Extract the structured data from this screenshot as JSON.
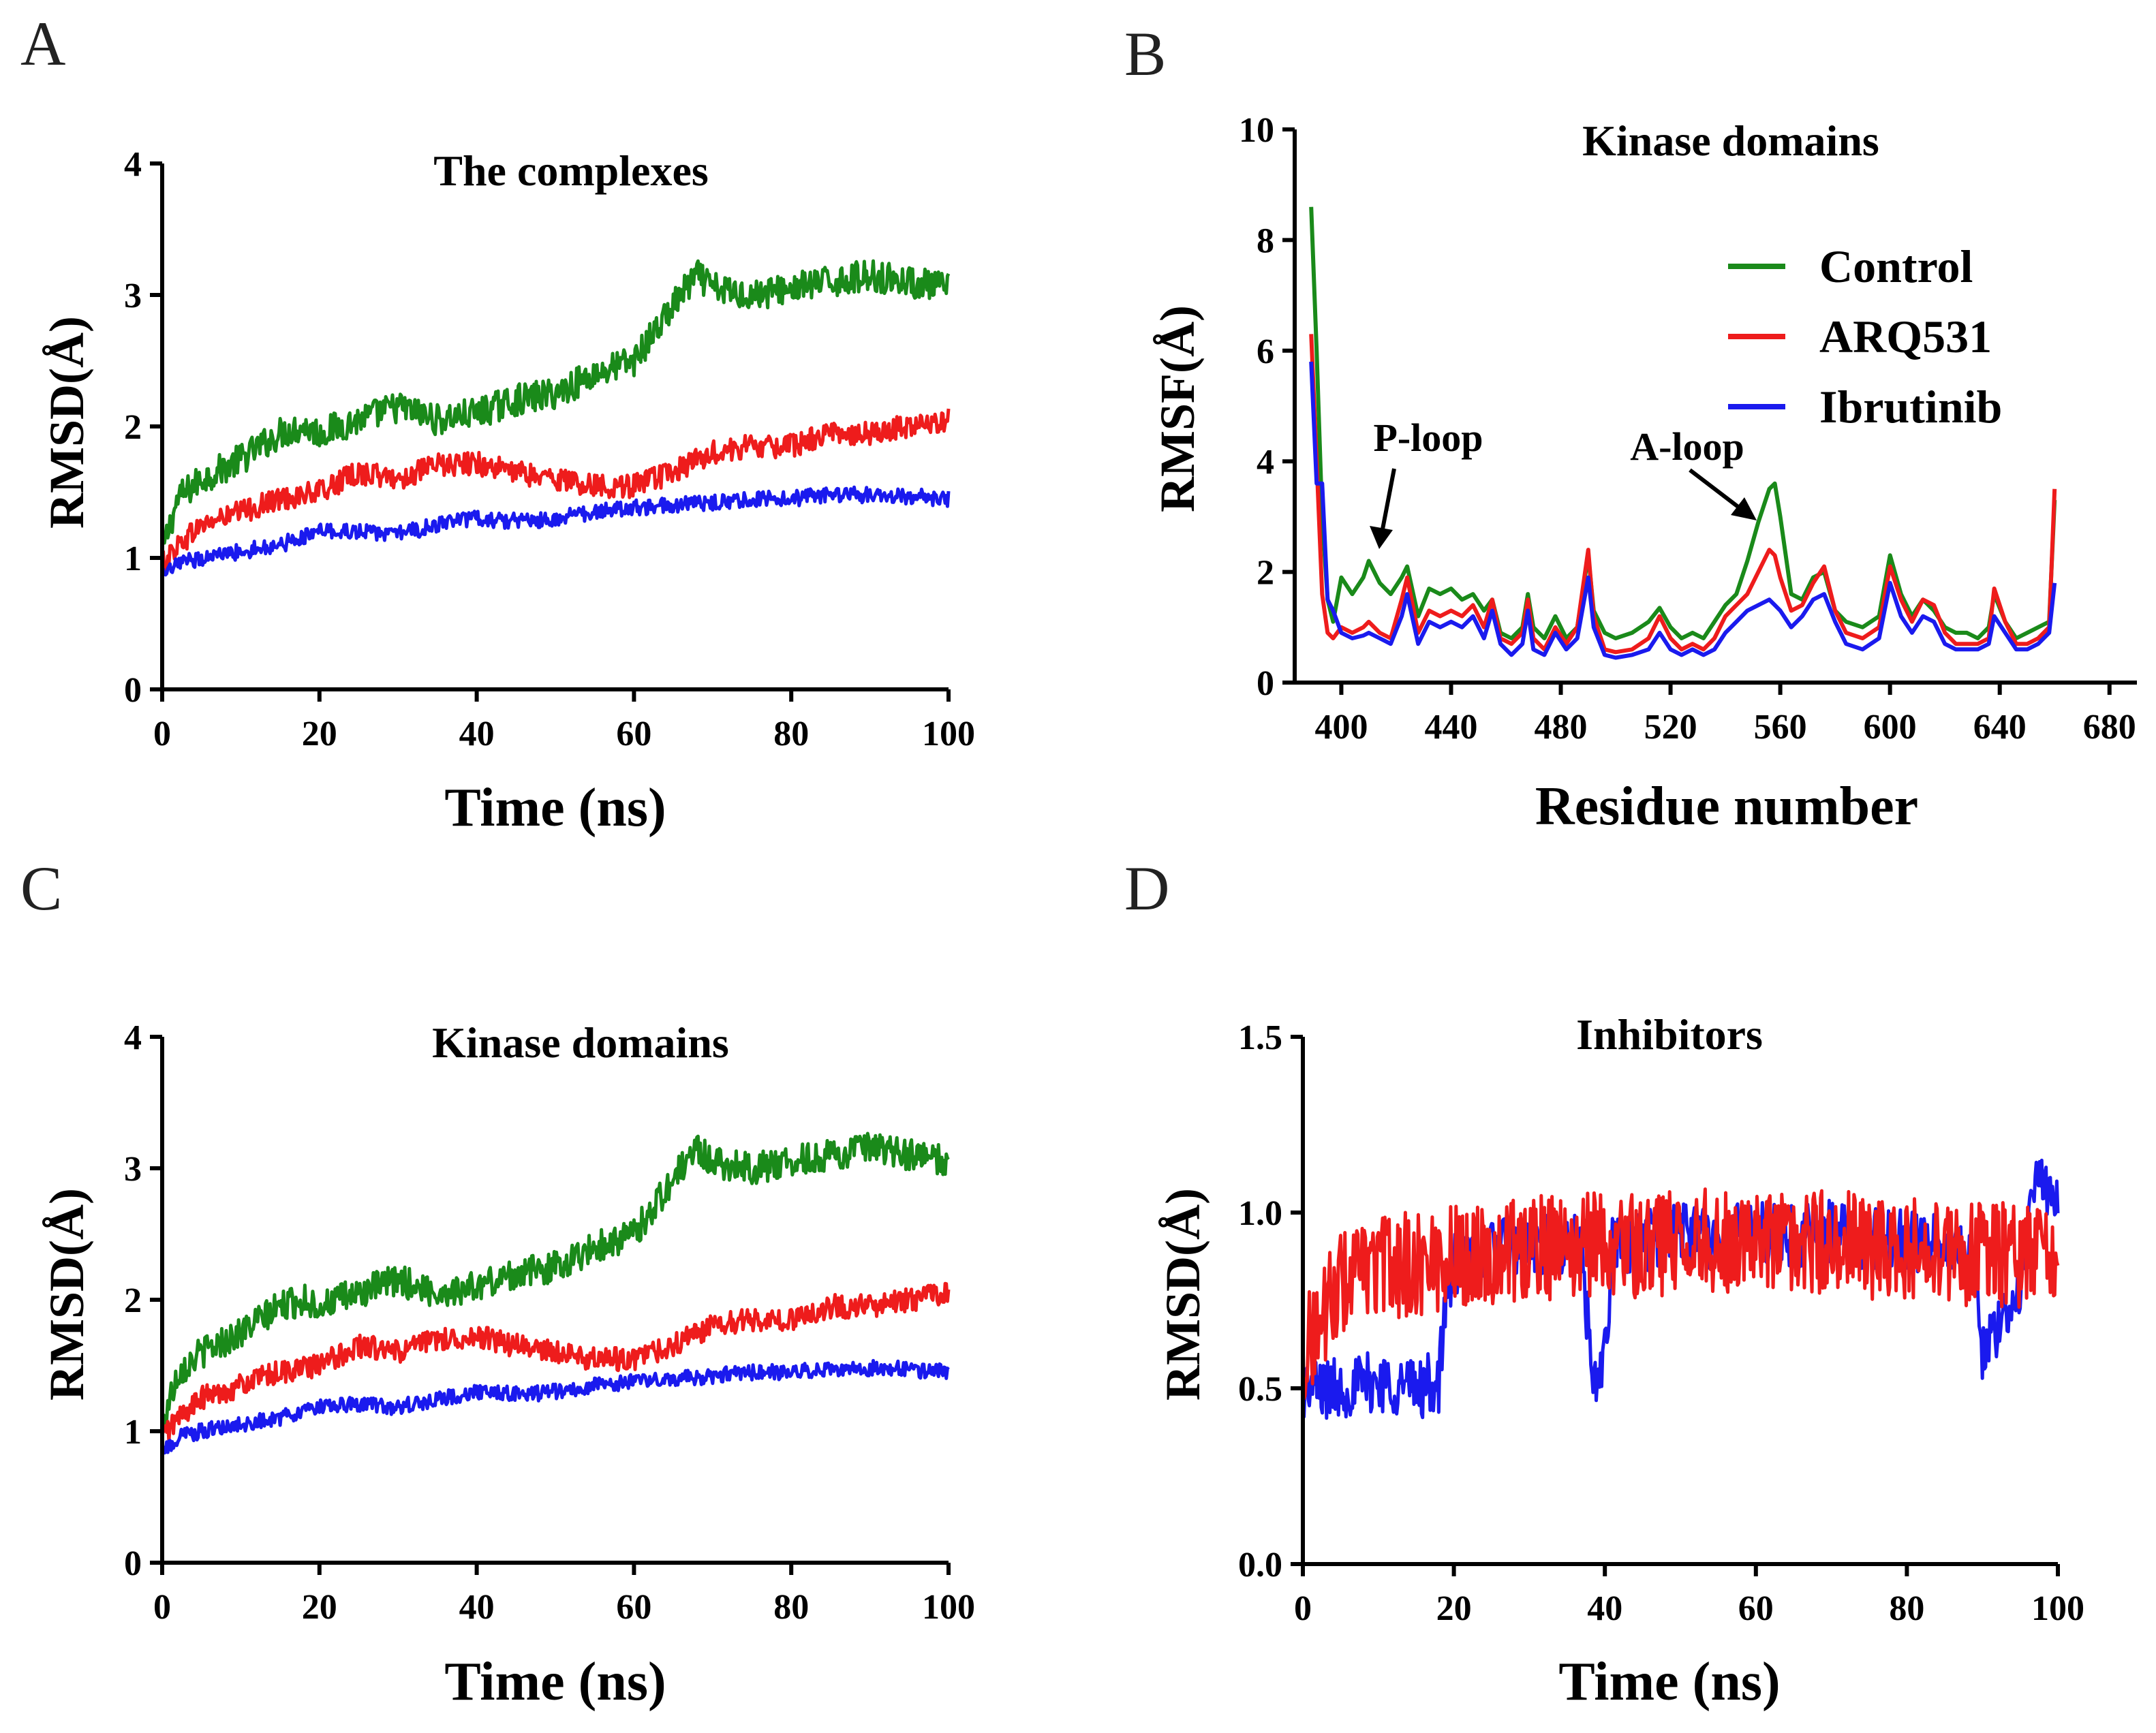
{
  "chart_data": [
    {
      "id": "A",
      "type": "line",
      "panel_label": "A",
      "title": "The complexes",
      "xlabel": "Time (ns)",
      "ylabel": "RMSD(Å)",
      "xlim": [
        0,
        100
      ],
      "ylim": [
        0,
        4
      ],
      "xticks": [
        0,
        20,
        40,
        60,
        80,
        100
      ],
      "yticks": [
        0,
        1,
        2,
        3,
        4
      ],
      "grid": false,
      "series": [
        {
          "color": "#1a8a1a",
          "x": [
            0,
            2,
            5,
            10,
            15,
            18,
            20,
            25,
            30,
            35,
            40,
            45,
            50,
            55,
            60,
            63,
            66,
            68,
            70,
            75,
            80,
            85,
            90,
            95,
            100
          ],
          "y": [
            1.05,
            1.45,
            1.6,
            1.75,
            1.95,
            2.0,
            1.95,
            2.05,
            2.15,
            2.05,
            2.1,
            2.2,
            2.25,
            2.4,
            2.5,
            2.75,
            3.0,
            3.15,
            3.05,
            3.0,
            3.05,
            3.1,
            3.15,
            3.1,
            3.05
          ]
        },
        {
          "color": "#ee1c1c",
          "x": [
            0,
            2,
            5,
            10,
            15,
            20,
            25,
            30,
            35,
            40,
            45,
            50,
            55,
            60,
            65,
            70,
            75,
            80,
            85,
            90,
            95,
            100
          ],
          "y": [
            0.95,
            1.1,
            1.25,
            1.35,
            1.45,
            1.5,
            1.65,
            1.6,
            1.7,
            1.72,
            1.65,
            1.6,
            1.55,
            1.55,
            1.65,
            1.8,
            1.85,
            1.85,
            1.95,
            1.95,
            2.0,
            2.05
          ]
        },
        {
          "color": "#1a1aee",
          "x": [
            0,
            2,
            5,
            10,
            15,
            20,
            25,
            30,
            35,
            40,
            45,
            50,
            55,
            60,
            65,
            70,
            75,
            80,
            85,
            90,
            95,
            100
          ],
          "y": [
            0.85,
            0.95,
            1.0,
            1.05,
            1.1,
            1.2,
            1.2,
            1.18,
            1.25,
            1.3,
            1.28,
            1.3,
            1.35,
            1.38,
            1.4,
            1.42,
            1.45,
            1.45,
            1.48,
            1.48,
            1.47,
            1.45
          ]
        }
      ],
      "noise": [
        0.12,
        0.09,
        0.06
      ]
    },
    {
      "id": "B",
      "type": "line",
      "panel_label": "B",
      "title": "Kinase domains",
      "xlabel": "Residue number",
      "ylabel": "RMSF(Å)",
      "xlim": [
        383,
        690
      ],
      "ylim": [
        0,
        10
      ],
      "xticks": [
        400,
        440,
        480,
        520,
        560,
        600,
        640,
        680
      ],
      "yticks": [
        0,
        2,
        4,
        6,
        8,
        10
      ],
      "grid": false,
      "legend": {
        "position": "top-right",
        "entries": [
          "Control",
          "ARQ531",
          "Ibrutinib"
        ]
      },
      "annotations": [
        {
          "text": "P-loop",
          "x": 410,
          "y": 2.2
        },
        {
          "text": "A-loop",
          "x": 553,
          "y": 2.9
        }
      ],
      "series": [
        {
          "name": "Control",
          "color": "#1a8a1a",
          "x": [
            389,
            391,
            393,
            395,
            397,
            400,
            404,
            408,
            410,
            414,
            418,
            422,
            424,
            428,
            432,
            436,
            440,
            444,
            448,
            452,
            455,
            458,
            462,
            466,
            468,
            470,
            474,
            478,
            482,
            486,
            490,
            492,
            496,
            500,
            506,
            512,
            516,
            520,
            524,
            528,
            532,
            536,
            540,
            544,
            548,
            552,
            556,
            558,
            560,
            564,
            568,
            572,
            576,
            580,
            584,
            590,
            596,
            600,
            604,
            608,
            612,
            616,
            620,
            624,
            628,
            632,
            636,
            638,
            642,
            646,
            650,
            654,
            658,
            660
          ],
          "y": [
            8.6,
            6.0,
            3.0,
            1.5,
            1.1,
            1.9,
            1.6,
            1.9,
            2.2,
            1.8,
            1.6,
            1.9,
            2.1,
            1.2,
            1.7,
            1.6,
            1.7,
            1.5,
            1.6,
            1.3,
            1.5,
            0.9,
            0.8,
            1.0,
            1.6,
            1.0,
            0.8,
            1.2,
            0.8,
            1.0,
            2.3,
            1.3,
            0.9,
            0.8,
            0.9,
            1.1,
            1.35,
            1.0,
            0.8,
            0.9,
            0.8,
            1.1,
            1.4,
            1.6,
            2.2,
            2.9,
            3.5,
            3.6,
            3.0,
            1.6,
            1.5,
            1.9,
            2.0,
            1.3,
            1.1,
            1.0,
            1.2,
            2.3,
            1.6,
            1.2,
            1.5,
            1.3,
            1.0,
            0.9,
            0.9,
            0.8,
            1.0,
            1.6,
            1.1,
            0.8,
            0.9,
            1.0,
            1.1,
            3.3
          ]
        },
        {
          "name": "ARQ531",
          "color": "#ee1c1c",
          "x": [
            389,
            391,
            393,
            395,
            397,
            400,
            404,
            408,
            410,
            414,
            418,
            422,
            424,
            428,
            432,
            436,
            440,
            444,
            448,
            452,
            455,
            458,
            462,
            466,
            468,
            470,
            474,
            478,
            482,
            486,
            490,
            492,
            496,
            500,
            506,
            512,
            516,
            520,
            524,
            528,
            532,
            536,
            540,
            544,
            548,
            552,
            556,
            558,
            560,
            564,
            568,
            572,
            576,
            580,
            584,
            590,
            596,
            600,
            604,
            608,
            612,
            616,
            620,
            624,
            628,
            632,
            636,
            638,
            642,
            646,
            650,
            654,
            658,
            660
          ],
          "y": [
            6.3,
            4.0,
            1.6,
            0.9,
            0.8,
            1.0,
            0.9,
            1.0,
            1.1,
            0.9,
            0.8,
            1.5,
            1.9,
            0.9,
            1.3,
            1.2,
            1.3,
            1.2,
            1.4,
            1.0,
            1.5,
            0.8,
            0.7,
            0.9,
            1.5,
            0.8,
            0.6,
            1.0,
            0.7,
            1.0,
            2.4,
            1.2,
            0.6,
            0.55,
            0.6,
            0.8,
            1.2,
            0.8,
            0.6,
            0.7,
            0.6,
            0.8,
            1.2,
            1.4,
            1.6,
            2.0,
            2.4,
            2.3,
            1.9,
            1.3,
            1.4,
            1.8,
            2.1,
            1.3,
            0.9,
            0.8,
            1.0,
            2.1,
            1.5,
            1.1,
            1.5,
            1.4,
            0.9,
            0.7,
            0.7,
            0.7,
            0.8,
            1.7,
            1.1,
            0.7,
            0.7,
            0.8,
            1.0,
            3.5
          ]
        },
        {
          "name": "Ibrutinib",
          "color": "#1a1aee",
          "x": [
            389,
            391,
            393,
            395,
            397,
            400,
            404,
            408,
            410,
            414,
            418,
            422,
            424,
            428,
            432,
            436,
            440,
            444,
            448,
            452,
            455,
            458,
            462,
            466,
            468,
            470,
            474,
            478,
            482,
            486,
            490,
            492,
            496,
            500,
            506,
            512,
            516,
            520,
            524,
            528,
            532,
            536,
            540,
            544,
            548,
            552,
            556,
            558,
            560,
            564,
            568,
            572,
            576,
            580,
            584,
            590,
            596,
            600,
            604,
            608,
            612,
            616,
            620,
            624,
            628,
            632,
            636,
            638,
            642,
            646,
            650,
            654,
            658,
            660
          ],
          "y": [
            5.8,
            3.6,
            3.6,
            1.5,
            1.3,
            0.9,
            0.8,
            0.85,
            0.9,
            0.8,
            0.7,
            1.2,
            1.6,
            0.7,
            1.1,
            1.0,
            1.1,
            1.0,
            1.2,
            0.8,
            1.3,
            0.7,
            0.5,
            0.7,
            1.3,
            0.6,
            0.5,
            0.9,
            0.6,
            0.8,
            1.9,
            1.0,
            0.5,
            0.45,
            0.5,
            0.6,
            0.9,
            0.6,
            0.5,
            0.6,
            0.5,
            0.6,
            0.9,
            1.1,
            1.3,
            1.4,
            1.5,
            1.4,
            1.3,
            1.0,
            1.2,
            1.5,
            1.6,
            1.1,
            0.7,
            0.6,
            0.8,
            1.8,
            1.2,
            0.9,
            1.2,
            1.1,
            0.7,
            0.6,
            0.6,
            0.6,
            0.7,
            1.2,
            0.9,
            0.6,
            0.6,
            0.7,
            0.9,
            1.8
          ]
        }
      ]
    },
    {
      "id": "C",
      "type": "line",
      "panel_label": "C",
      "title": "Kinase domains",
      "xlabel": "Time (ns)",
      "ylabel": "RMSD(Å)",
      "xlim": [
        0,
        100
      ],
      "ylim": [
        0,
        4
      ],
      "xticks": [
        0,
        20,
        40,
        60,
        80,
        100
      ],
      "yticks": [
        0,
        1,
        2,
        3,
        4
      ],
      "grid": false,
      "series": [
        {
          "color": "#1a8a1a",
          "x": [
            0,
            2,
            5,
            10,
            15,
            18,
            20,
            25,
            30,
            35,
            40,
            45,
            50,
            55,
            60,
            63,
            66,
            68,
            70,
            75,
            80,
            85,
            90,
            95,
            100
          ],
          "y": [
            1.05,
            1.45,
            1.6,
            1.75,
            1.95,
            2.0,
            1.95,
            2.05,
            2.15,
            2.05,
            2.1,
            2.2,
            2.25,
            2.4,
            2.5,
            2.75,
            3.0,
            3.15,
            3.05,
            3.0,
            3.05,
            3.1,
            3.15,
            3.1,
            3.05
          ]
        },
        {
          "color": "#ee1c1c",
          "x": [
            0,
            2,
            5,
            10,
            15,
            20,
            25,
            30,
            35,
            40,
            45,
            50,
            55,
            60,
            65,
            70,
            75,
            80,
            85,
            90,
            95,
            100
          ],
          "y": [
            0.95,
            1.1,
            1.25,
            1.35,
            1.45,
            1.5,
            1.65,
            1.6,
            1.7,
            1.72,
            1.65,
            1.6,
            1.55,
            1.55,
            1.65,
            1.8,
            1.85,
            1.85,
            1.95,
            1.95,
            2.0,
            2.05
          ]
        },
        {
          "color": "#1a1aee",
          "x": [
            0,
            2,
            5,
            10,
            15,
            20,
            25,
            30,
            35,
            40,
            45,
            50,
            55,
            60,
            65,
            70,
            75,
            80,
            85,
            90,
            95,
            100
          ],
          "y": [
            0.85,
            0.95,
            1.0,
            1.05,
            1.1,
            1.2,
            1.2,
            1.18,
            1.25,
            1.3,
            1.28,
            1.3,
            1.35,
            1.38,
            1.4,
            1.42,
            1.45,
            1.45,
            1.48,
            1.48,
            1.47,
            1.45
          ]
        }
      ],
      "noise": [
        0.12,
        0.09,
        0.06
      ]
    },
    {
      "id": "D",
      "type": "line",
      "panel_label": "D",
      "title": "Inhibitors",
      "xlabel": "Time (ns)",
      "ylabel": "RMSD(Å)",
      "xlim": [
        0,
        100
      ],
      "ylim": [
        0,
        1.5
      ],
      "xticks": [
        0,
        20,
        40,
        60,
        80,
        100
      ],
      "yticks": [
        "0.0",
        "0.5",
        "1.0",
        "1.5"
      ],
      "grid": false,
      "series": [
        {
          "color": "#1a1aee",
          "x": [
            0,
            5,
            10,
            15,
            18,
            19,
            20,
            25,
            30,
            35,
            37,
            38,
            39,
            40,
            41,
            45,
            50,
            55,
            60,
            65,
            70,
            75,
            80,
            85,
            89,
            90,
            91,
            93,
            95,
            96,
            97,
            98,
            100
          ],
          "y": [
            0.5,
            0.5,
            0.52,
            0.5,
            0.52,
            0.75,
            0.85,
            0.9,
            0.9,
            0.92,
            0.9,
            0.6,
            0.45,
            0.6,
            0.9,
            0.92,
            0.95,
            0.92,
            0.95,
            0.93,
            0.95,
            0.92,
            0.93,
            0.9,
            0.85,
            0.6,
            0.62,
            0.7,
            0.8,
            1.0,
            1.1,
            1.08,
            1.0
          ]
        },
        {
          "color": "#ee1c1c",
          "x": [
            0,
            5,
            10,
            15,
            20,
            25,
            30,
            35,
            40,
            45,
            50,
            55,
            60,
            65,
            70,
            75,
            80,
            85,
            90,
            95,
            100
          ],
          "y": [
            0.6,
            0.8,
            0.85,
            0.85,
            0.88,
            0.88,
            0.9,
            0.9,
            0.92,
            0.9,
            0.92,
            0.92,
            0.92,
            0.9,
            0.92,
            0.9,
            0.9,
            0.88,
            0.88,
            0.88,
            0.85
          ]
        }
      ],
      "noise": [
        0.09,
        0.15
      ]
    }
  ]
}
